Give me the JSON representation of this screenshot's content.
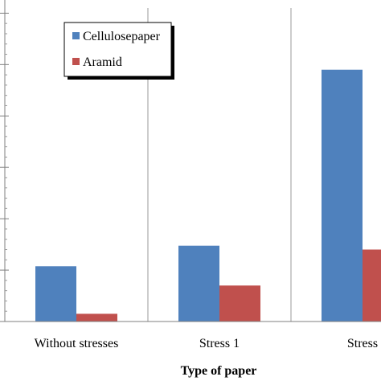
{
  "chart_data": {
    "type": "bar",
    "title": "",
    "xlabel": "Type of paper",
    "ylabel": "",
    "categories": [
      "Without stresses",
      "Stress 1",
      "Stress"
    ],
    "series": [
      {
        "name": "Cellulose paper",
        "legend_label": "Cellulosepaper",
        "color": "#4F81BD",
        "values": [
          21.5,
          29.5,
          98
        ]
      },
      {
        "name": "Aramid",
        "legend_label": "Aramid",
        "color": "#C0504D",
        "values": [
          3,
          14,
          28
        ]
      }
    ],
    "ylim": [
      0,
      122
    ],
    "y_gridline_step": 20,
    "y_minor_ticks": true,
    "y_tick_labels_visible": false,
    "grid": "vertical category separators",
    "legend_position": "top-left"
  }
}
